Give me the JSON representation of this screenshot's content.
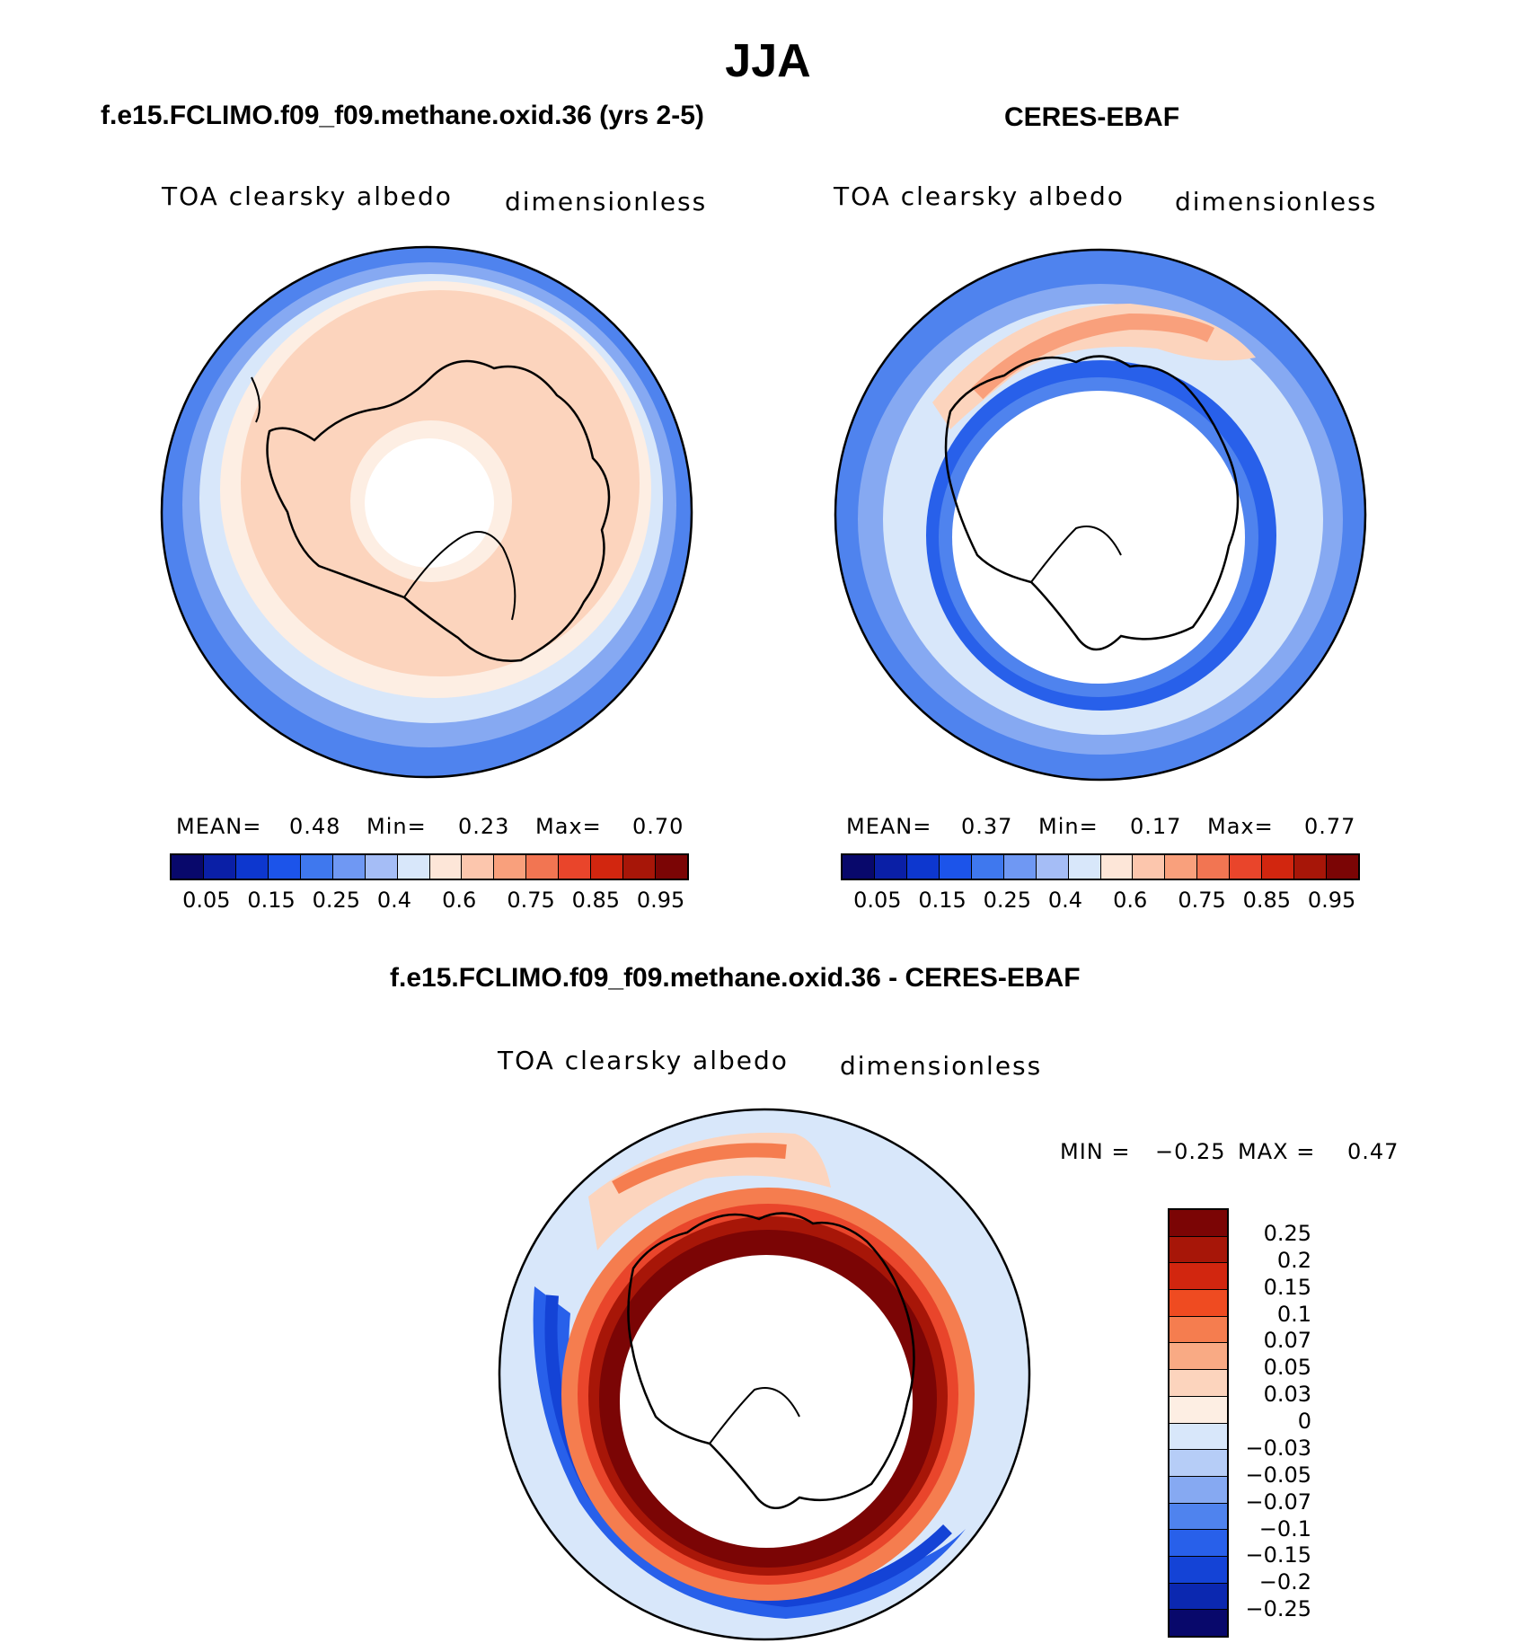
{
  "figure": {
    "season": "JJA",
    "left_title": "f.e15.FCLIMO.f09_f09.methane.oxid.36 (yrs 2-5)",
    "right_title": "CERES-EBAF",
    "diff_title": "f.e15.FCLIMO.f09_f09.methane.oxid.36 - CERES-EBAF"
  },
  "panels": {
    "model": {
      "variable": "TOA clearsky albedo",
      "units": "dimensionless",
      "mean_label": "MEAN=",
      "mean": "0.48",
      "min_label": "Min=",
      "min": "0.23",
      "max_label": "Max=",
      "max": "0.70"
    },
    "obs": {
      "variable": "TOA clearsky albedo",
      "units": "dimensionless",
      "mean_label": "MEAN=",
      "mean": "0.37",
      "min_label": "Min=",
      "min": "0.17",
      "max_label": "Max=",
      "max": "0.77"
    },
    "diff": {
      "variable": "TOA clearsky albedo",
      "units": "dimensionless",
      "min_label": "MIN =",
      "min": "−0.25",
      "max_label": "MAX =",
      "max": "0.47"
    }
  },
  "colorbar_abs": {
    "colors": [
      "#08086b",
      "#0a1fa6",
      "#0d37cf",
      "#1c54ea",
      "#3f78ee",
      "#6f98f3",
      "#a5bdf6",
      "#d8e7fa",
      "#fde6d8",
      "#fcc6ad",
      "#f9a07c",
      "#f27552",
      "#e9452b",
      "#d2260f",
      "#a71608",
      "#7b0505"
    ],
    "tick_labels": [
      "0.05",
      "0.15",
      "0.25",
      "0.4",
      "0.6",
      "0.75",
      "0.85",
      "0.95"
    ]
  },
  "colorbar_diff": {
    "colors": [
      "#7b0505",
      "#a71608",
      "#d2260f",
      "#ef4b21",
      "#f57d4f",
      "#f9aa84",
      "#fcd4bd",
      "#fdeee3",
      "#d8e7fa",
      "#b6cdf7",
      "#86a9f2",
      "#4f83ee",
      "#2860ea",
      "#1443d6",
      "#0b28b0",
      "#08086b"
    ],
    "tick_labels": [
      "0.25",
      "0.2",
      "0.15",
      "0.1",
      "0.07",
      "0.05",
      "0.03",
      "0",
      "−0.03",
      "−0.05",
      "−0.07",
      "−0.1",
      "−0.15",
      "−0.2",
      "−0.25"
    ]
  },
  "map_colors": {
    "outer_blue": "#4f83ee",
    "mid_blue": "#86a9f2",
    "light_blue": "#d8e7fa",
    "peach": "#fdeee3",
    "salmon": "#fcd4bd",
    "deep_blue": "#2860ea",
    "dark_red": "#a71608",
    "red": "#e9452b",
    "orange": "#f57d4f"
  }
}
